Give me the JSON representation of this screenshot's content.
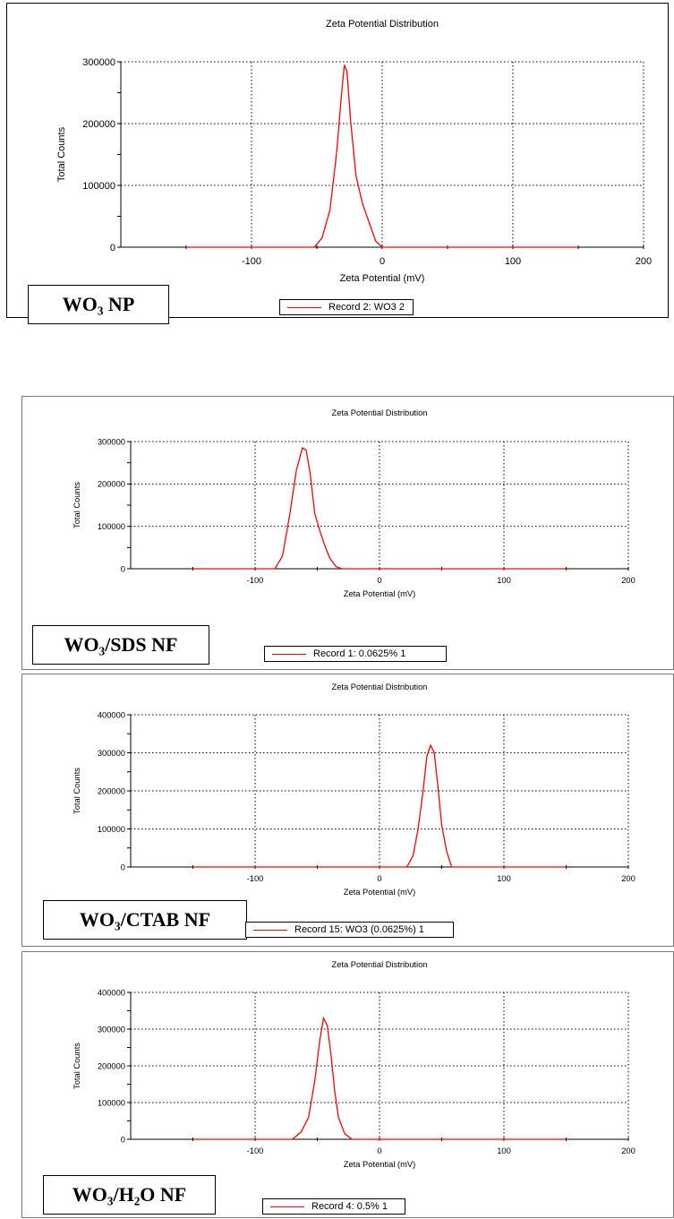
{
  "chart_data": [
    {
      "type": "line",
      "title": "Zeta Potential Distribution",
      "xlabel": "Zeta Potential (mV)",
      "ylabel": "Total Counts",
      "xlim": [
        -200,
        200
      ],
      "ylim": [
        0,
        300000
      ],
      "xticks": [
        -100,
        0,
        100,
        200
      ],
      "xtick_labels": [
        "-100",
        "0",
        "100",
        "200"
      ],
      "yticks": [
        0,
        100000,
        200000,
        300000
      ],
      "ytick_labels": [
        "0",
        "100000",
        "200000",
        "300000"
      ],
      "grid": true,
      "sample_label": "WO₃ NP",
      "legend": "Record 2: WO3 2",
      "series": [
        {
          "name": "Record 2: WO3 2",
          "color": "#ff0000",
          "x": [
            -150,
            -52,
            -46,
            -40,
            -35,
            -31,
            -29,
            -27,
            -24,
            -20,
            -15,
            -10,
            -5,
            0,
            150
          ],
          "y": [
            0,
            0,
            15000,
            60000,
            150000,
            250000,
            295000,
            285000,
            200000,
            115000,
            70000,
            40000,
            10000,
            0,
            0
          ]
        }
      ]
    },
    {
      "type": "line",
      "title": "Zeta Potential Distribution",
      "xlabel": "Zeta Potential (mV)",
      "ylabel": "Total Counts",
      "xlim": [
        -200,
        200
      ],
      "ylim": [
        0,
        300000
      ],
      "xticks": [
        -100,
        0,
        100,
        200
      ],
      "xtick_labels": [
        "-100",
        "0",
        "100",
        "200"
      ],
      "yticks": [
        0,
        100000,
        200000,
        300000
      ],
      "ytick_labels": [
        "0",
        "100000",
        "200000",
        "300000"
      ],
      "grid": true,
      "sample_label": "WO₃/SDS NF",
      "legend": "Record 1: 0.0625% 1",
      "series": [
        {
          "name": "Record 1: 0.0625% 1",
          "color": "#ff0000",
          "x": [
            -150,
            -84,
            -78,
            -72,
            -67,
            -62,
            -59,
            -56,
            -52,
            -48,
            -44,
            -40,
            -35,
            -30,
            150
          ],
          "y": [
            0,
            0,
            30000,
            130000,
            230000,
            285000,
            280000,
            230000,
            130000,
            90000,
            55000,
            25000,
            5000,
            0,
            0
          ]
        }
      ]
    },
    {
      "type": "line",
      "title": "Zeta Potential Distribution",
      "xlabel": "Zeta Potential (mV)",
      "ylabel": "Total Counts",
      "xlim": [
        -200,
        200
      ],
      "ylim": [
        0,
        400000
      ],
      "xticks": [
        -100,
        0,
        100,
        200
      ],
      "xtick_labels": [
        "-100",
        "0",
        "100",
        "200"
      ],
      "yticks": [
        0,
        100000,
        200000,
        300000,
        400000
      ],
      "ytick_labels": [
        "0",
        "100000",
        "200000",
        "300000",
        "400000"
      ],
      "grid": true,
      "sample_label": "WO₃/CTAB NF",
      "legend": "Record 15: WO3 (0.0625%) 1",
      "series": [
        {
          "name": "Record 15: WO3 (0.0625%) 1",
          "color": "#ff0000",
          "x": [
            -150,
            22,
            27,
            31,
            35,
            38,
            41,
            44,
            47,
            50,
            54,
            58,
            150
          ],
          "y": [
            0,
            0,
            30000,
            100000,
            200000,
            290000,
            320000,
            300000,
            210000,
            110000,
            40000,
            0,
            0
          ]
        }
      ]
    },
    {
      "type": "line",
      "title": "Zeta Potential Distribution",
      "xlabel": "Zeta Potential (mV)",
      "ylabel": "Total Counts",
      "xlim": [
        -200,
        200
      ],
      "ylim": [
        0,
        400000
      ],
      "xticks": [
        -100,
        0,
        100,
        200
      ],
      "xtick_labels": [
        "-100",
        "0",
        "100",
        "200"
      ],
      "yticks": [
        0,
        100000,
        200000,
        300000,
        400000
      ],
      "ytick_labels": [
        "0",
        "100000",
        "200000",
        "300000",
        "400000"
      ],
      "grid": true,
      "sample_label": "WO₃/H₂O NF",
      "legend": "Record 4: 0.5% 1",
      "series": [
        {
          "name": "Record 4: 0.5% 1",
          "color": "#ff0000",
          "x": [
            -150,
            -70,
            -63,
            -57,
            -52,
            -48,
            -45,
            -42,
            -39,
            -36,
            -33,
            -28,
            -22,
            150
          ],
          "y": [
            0,
            0,
            20000,
            60000,
            160000,
            270000,
            330000,
            310000,
            230000,
            130000,
            60000,
            15000,
            0,
            0
          ]
        }
      ]
    }
  ]
}
